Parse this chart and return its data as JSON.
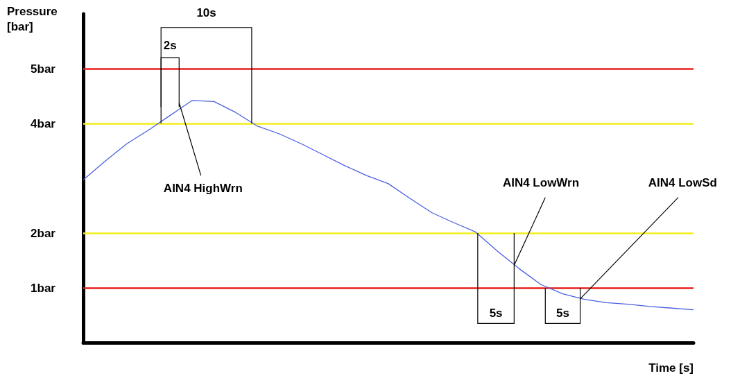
{
  "chart_data": {
    "type": "line",
    "xlabel": "Time [s]",
    "ylabel": "Pressure [bar]",
    "categories": [
      null,
      null,
      null,
      null,
      null,
      null,
      null,
      null,
      null,
      null,
      null,
      null,
      null,
      null,
      null,
      null,
      null,
      null,
      null,
      null,
      null,
      null,
      null,
      null,
      null,
      null,
      null,
      null,
      null
    ],
    "series": [
      {
        "color": "#4a5fe0",
        "values": [
          2.97,
          3.31,
          3.63,
          3.88,
          4.15,
          4.42,
          4.4,
          4.2,
          3.95,
          3.81,
          3.63,
          3.43,
          3.23,
          3.05,
          2.9,
          2.63,
          2.37,
          2.19,
          2.02,
          1.67,
          1.35,
          1.06,
          0.89,
          0.79,
          0.73,
          0.7,
          0.66,
          0.63,
          0.6
        ]
      }
    ],
    "ylim": [
      0,
      6
    ],
    "yticks": [
      {
        "value": 1,
        "label": "1bar"
      },
      {
        "value": 2,
        "label": "2bar"
      },
      {
        "value": 4,
        "label": "4bar"
      },
      {
        "value": 5,
        "label": "5bar"
      }
    ],
    "ref_lines": [
      {
        "axis": "y",
        "value": 5,
        "color": "#e8201c"
      },
      {
        "axis": "y",
        "value": 4,
        "color": "#f2ee1a"
      },
      {
        "axis": "y",
        "value": 2,
        "color": "#f2ee1a"
      },
      {
        "axis": "y",
        "value": 1,
        "color": "#e8201c"
      }
    ],
    "annotations": [
      "10s",
      "2s",
      "AIN4 HighWrn",
      "AIN4 LowWrn",
      "AIN4 LowSd",
      "5s",
      "5s"
    ],
    "grid": false,
    "marker": "none",
    "line_style": "solid"
  }
}
